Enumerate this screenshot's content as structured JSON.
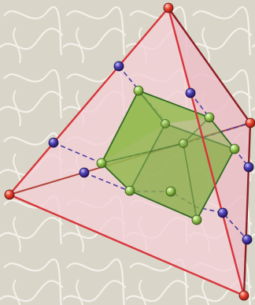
{
  "figure": {
    "description_free": true,
    "colors": {
      "background": "#d9d5c9",
      "background_pattern": "#f4f1ea",
      "tetra_face": "#f3cfd6",
      "tetra_edge_front": "#d8353a",
      "tetra_edge_back": "#8c1f24",
      "cube_face": "#9ec25a",
      "cube_face_dark": "#7ea23e",
      "cube_edge": "#2f6b21",
      "section_line": "#4b3ea0",
      "vertex_red": "#e23b2c",
      "vertex_green": "#8fc24c",
      "vertex_purple": "#4a3aa0"
    }
  }
}
